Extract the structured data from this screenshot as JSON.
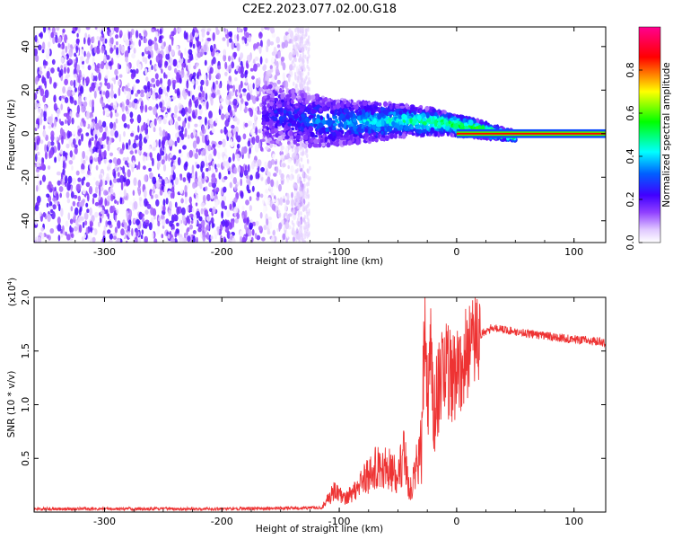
{
  "title": "C2E2.2023.077.02.00.G18",
  "chart_data": [
    {
      "type": "heatmap",
      "xlabel": "Height of straight line (km)",
      "ylabel": "Frequency (Hz)",
      "xlim": [
        -360,
        127
      ],
      "ylim": [
        -50,
        49
      ],
      "xticks": [
        -300,
        -200,
        -100,
        0,
        100
      ],
      "yticks": [
        -40,
        -20,
        0,
        20,
        40
      ],
      "colorbar": {
        "label": "Normalized spectral amplitude",
        "range": [
          0.0,
          1.0
        ],
        "ticks": [
          "0.0",
          "0.2",
          "0.4",
          "0.6",
          "0.8"
        ],
        "colormap": [
          "#ffffff",
          "#c080ff",
          "#6600ff",
          "#0000ff",
          "#00ffff",
          "#00ff00",
          "#ffff00",
          "#ff0000",
          "#ff0080"
        ]
      },
      "regions": [
        {
          "description_x_range": [
            -360,
            -130
          ],
          "freq_range": [
            -50,
            49
          ],
          "amplitude_max": 0.15
        },
        {
          "description_x_range": [
            -160,
            50
          ],
          "freq_center_start": 10,
          "freq_center_end": 0,
          "amplitude_max": 0.6
        },
        {
          "description_x_range": [
            0,
            127
          ],
          "freq_center": 0,
          "amplitude_max": 0.85
        }
      ]
    },
    {
      "type": "line",
      "xlabel": "Height of straight line (km)",
      "ylabel": "SNR (10 * v/v)",
      "yscale_label": "(x10",
      "yscale_exp": "4",
      "yscale_close": ")",
      "xlim": [
        -360,
        127
      ],
      "ylim": [
        0,
        2.0
      ],
      "xticks": [
        -300,
        -200,
        -100,
        0,
        100
      ],
      "yticks": [
        0.5,
        1.0,
        1.5,
        2.0
      ],
      "ytick_labels": [
        "0.5",
        "1.0",
        "1.5",
        "2.0"
      ],
      "color": "#ee3333",
      "series": [
        {
          "x": [
            -360,
            -200,
            -115,
            -105,
            -95,
            -85,
            -75,
            -65,
            -55,
            -50,
            -45,
            -40,
            -35,
            -30,
            -27,
            -25,
            -22,
            -20,
            -15,
            -10,
            -5,
            0,
            10,
            20,
            30,
            40,
            50,
            70,
            90,
            110,
            127
          ],
          "values": [
            0.03,
            0.03,
            0.04,
            0.15,
            0.1,
            0.18,
            0.28,
            0.35,
            0.3,
            0.25,
            0.45,
            0.15,
            0.3,
            0.5,
            1.8,
            1.0,
            1.6,
            0.9,
            1.2,
            1.35,
            1.25,
            1.3,
            1.5,
            1.65,
            1.72,
            1.7,
            1.68,
            1.65,
            1.62,
            1.6,
            1.58
          ]
        }
      ]
    }
  ]
}
